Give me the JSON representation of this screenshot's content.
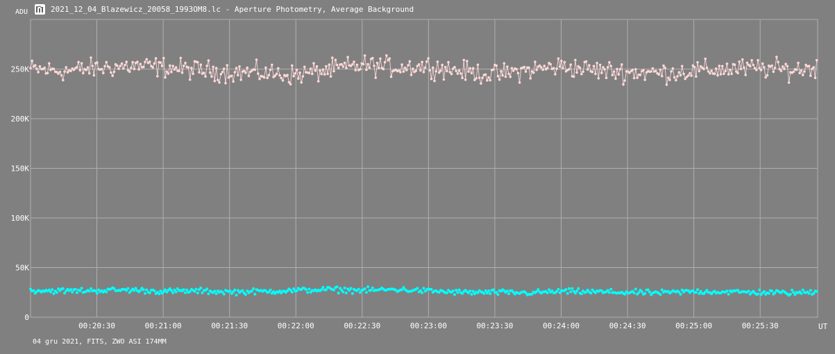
{
  "title": "2021_12_04_Blazewicz_20058_1993OM8.lc - Aperture Photometry, Average Background",
  "icon": "light-curve-app-icon",
  "footer": "04 gru 2021, FITS, ZWO ASI 174MM",
  "colors": {
    "background": "#808080",
    "grid": "#b0b0b0",
    "series_flux": "#ffd8d8",
    "series_background": "#00ffff",
    "text": "#ffffff"
  },
  "chart_data": {
    "type": "scatter",
    "title": "2021_12_04_Blazewicz_20058_1993OM8.lc - Aperture Photometry, Average Background",
    "xlabel": "UT",
    "ylabel": "ADU",
    "xlim": [
      "00:20:00",
      "00:25:56"
    ],
    "ylim": [
      0,
      300000
    ],
    "grid": true,
    "x_ticks": [
      "00:20:30",
      "00:21:00",
      "00:21:30",
      "00:22:00",
      "00:22:30",
      "00:23:00",
      "00:23:30",
      "00:24:00",
      "00:24:30",
      "00:25:00",
      "00:25:30"
    ],
    "y_ticks": [
      "0",
      "50K",
      "100K",
      "150K",
      "200K",
      "250K"
    ],
    "series": [
      {
        "color": "#ffd8d8",
        "connected": true,
        "x": [
          "00:20:00",
          "00:20:15",
          "00:20:30",
          "00:20:45",
          "00:21:00",
          "00:21:15",
          "00:21:30",
          "00:21:45",
          "00:22:00",
          "00:22:15",
          "00:22:30",
          "00:22:45",
          "00:23:00",
          "00:23:15",
          "00:23:30",
          "00:23:45",
          "00:24:00",
          "00:24:15",
          "00:24:30",
          "00:24:45",
          "00:25:00",
          "00:25:15",
          "00:25:30",
          "00:25:45",
          "00:25:56"
        ],
        "values": [
          250000,
          248000,
          251000,
          253000,
          252000,
          249000,
          247000,
          246000,
          244000,
          249000,
          254000,
          252000,
          253000,
          248000,
          244000,
          249000,
          253000,
          249000,
          247000,
          246000,
          248000,
          250000,
          251000,
          249000,
          252000
        ],
        "spread": 9000
      },
      {
        "color": "#00ffff",
        "connected": false,
        "x": [
          "00:20:00",
          "00:20:15",
          "00:20:30",
          "00:20:45",
          "00:21:00",
          "00:21:15",
          "00:21:30",
          "00:21:45",
          "00:22:00",
          "00:22:15",
          "00:22:30",
          "00:22:45",
          "00:23:00",
          "00:23:15",
          "00:23:30",
          "00:23:45",
          "00:24:00",
          "00:24:15",
          "00:24:30",
          "00:24:45",
          "00:25:00",
          "00:25:15",
          "00:25:30",
          "00:25:45",
          "00:25:56"
        ],
        "values": [
          27000,
          26500,
          27000,
          27500,
          26000,
          26500,
          25500,
          26000,
          27000,
          28000,
          27000,
          28000,
          26500,
          25000,
          25000,
          24500,
          26000,
          25500,
          25000,
          24500,
          26000,
          25500,
          25000,
          24500,
          25500
        ],
        "spread": 2500
      }
    ]
  }
}
